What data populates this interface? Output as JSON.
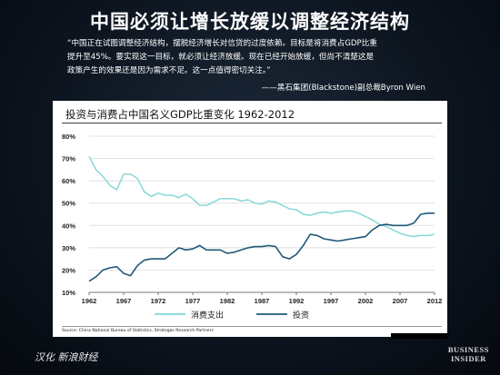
{
  "slide": {
    "title": "中国必须让增长放缓以调整经济结构",
    "quote_lines": [
      "“中国正在试图调整经济结构，摆脱经济增长对信贷的过度依赖。目标是将消费占GDP比重",
      "提升至45%。要实现这一目标，就必须让经济放缓。现在已经开始放缓，但尚不清楚这是",
      "政策产生的效果还是因为需求不足。这一点值得密切关注。”"
    ],
    "attribution": "——黑石集团(Blackstone)副总裁Byron Wien",
    "source": "Source: China National Bureau of Statistics, Strategas Research Partners",
    "footer_left": "汉化 新浪财经",
    "footer_right_line1": "BUSINESS",
    "footer_right_line2": "INSIDER"
  },
  "colors": {
    "consumption": "#7fd6d6",
    "investment": "#1f5a78",
    "background": "#0d1520"
  },
  "chart_data": {
    "type": "line",
    "title": "投资与消费占中国名义GDP比重变化 1962-2012",
    "xlabel": "",
    "ylabel": "",
    "ylim": [
      10,
      80
    ],
    "y_ticks": [
      "80%",
      "70%",
      "60%",
      "50%",
      "40%",
      "30%",
      "20%",
      "10%"
    ],
    "x_ticks": [
      "1962",
      "1967",
      "1972",
      "1977",
      "1982",
      "1987",
      "1992",
      "1997",
      "2002",
      "2007",
      "2012"
    ],
    "grid": true,
    "legend_position": "bottom",
    "x": [
      1962,
      1963,
      1964,
      1965,
      1966,
      1967,
      1968,
      1969,
      1970,
      1971,
      1972,
      1973,
      1974,
      1975,
      1976,
      1977,
      1978,
      1979,
      1980,
      1981,
      1982,
      1983,
      1984,
      1985,
      1986,
      1987,
      1988,
      1989,
      1990,
      1991,
      1992,
      1993,
      1994,
      1995,
      1996,
      1997,
      1998,
      1999,
      2000,
      2001,
      2002,
      2003,
      2004,
      2005,
      2006,
      2007,
      2008,
      2009,
      2010,
      2011,
      2012
    ],
    "series": [
      {
        "name": "消费支出",
        "values": [
          71,
          65,
          62,
          58,
          56,
          63,
          63,
          61,
          55,
          53,
          54.5,
          53.5,
          53.5,
          52.5,
          54,
          52,
          49,
          49,
          50.5,
          52,
          52,
          52,
          51,
          51.5,
          50,
          49.5,
          51,
          50.5,
          49,
          47.5,
          47,
          45,
          44.5,
          45.5,
          46,
          45.5,
          46,
          46.5,
          46.5,
          45.5,
          44,
          42.5,
          40.5,
          39.5,
          38,
          36.5,
          35.5,
          35,
          35.5,
          35.5,
          36
        ]
      },
      {
        "name": "投资",
        "values": [
          15,
          17,
          20,
          21,
          21.5,
          18.5,
          17.5,
          22,
          24.5,
          25,
          25,
          25,
          27.5,
          30,
          29,
          29.5,
          31,
          29,
          29,
          29,
          27.5,
          28,
          29,
          30,
          30.5,
          30.5,
          31,
          30.5,
          26,
          25,
          27,
          31,
          36,
          35.5,
          34,
          33.5,
          33,
          33.5,
          34,
          34.5,
          35,
          38,
          40,
          40.5,
          40,
          40,
          40,
          41,
          45,
          45.5,
          45.5
        ]
      }
    ]
  }
}
